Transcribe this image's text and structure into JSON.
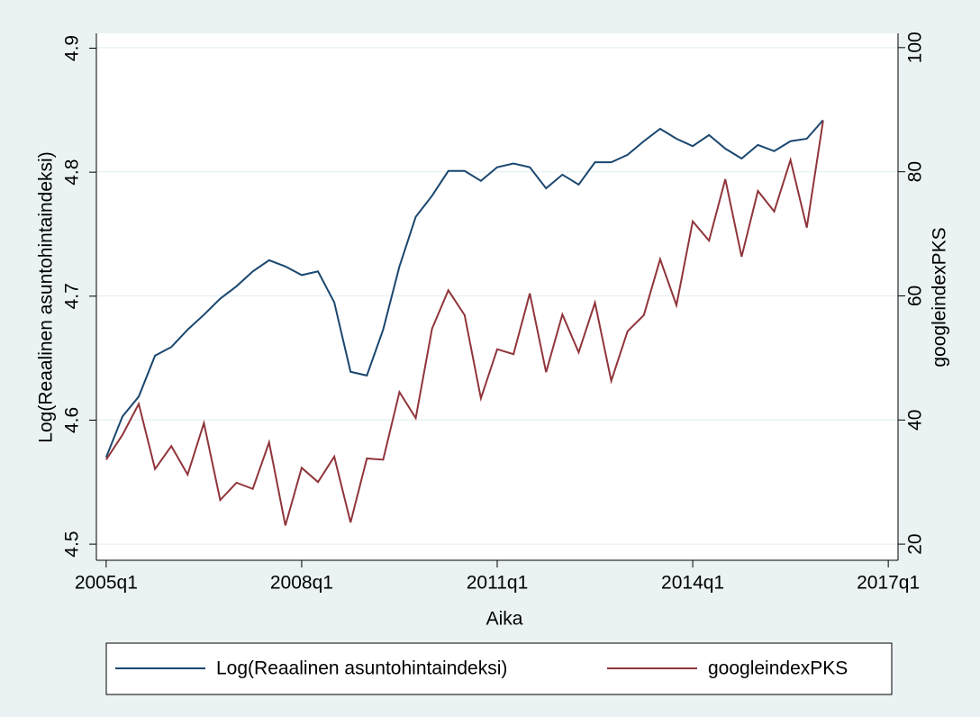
{
  "chart_data": {
    "type": "line",
    "x_label": "Aika",
    "y_label": "Log(Reaalinen asuntohintaindeksi)",
    "y2_label": "googleindexPKS",
    "x": [
      2005,
      2005.25,
      2005.5,
      2005.75,
      2006,
      2006.25,
      2006.5,
      2006.75,
      2007,
      2007.25,
      2007.5,
      2007.75,
      2008,
      2008.25,
      2008.5,
      2008.75,
      2009,
      2009.25,
      2009.5,
      2009.75,
      2010,
      2010.25,
      2010.5,
      2010.75,
      2011,
      2011.25,
      2011.5,
      2011.75,
      2012,
      2012.25,
      2012.5,
      2012.75,
      2013,
      2013.25,
      2013.5,
      2013.75,
      2014,
      2014.25,
      2014.5,
      2014.75,
      2015,
      2015.25,
      2015.5,
      2015.75,
      2016
    ],
    "xlim": [
      2004.85,
      2017.15
    ],
    "xticks": [
      {
        "value": 2005,
        "label": "2005q1"
      },
      {
        "value": 2008,
        "label": "2008q1"
      },
      {
        "value": 2011,
        "label": "2011q1"
      },
      {
        "value": 2014,
        "label": "2014q1"
      },
      {
        "value": 2017,
        "label": "2017q1"
      }
    ],
    "ylim": [
      4.487,
      4.912
    ],
    "yticks": [
      4.5,
      4.6,
      4.7,
      4.8,
      4.9
    ],
    "y2lim": [
      17.4,
      102.3
    ],
    "y2ticks": [
      20,
      40,
      60,
      80,
      100
    ],
    "grid": true,
    "legend": "bottom",
    "series": [
      {
        "name": "Log(Reaalinen asuntohintaindeksi)",
        "color": "#1a476f",
        "axis": "y",
        "values": [
          4.57,
          4.603,
          4.619,
          4.652,
          4.659,
          4.673,
          4.685,
          4.698,
          4.708,
          4.72,
          4.729,
          4.724,
          4.717,
          4.72,
          4.695,
          4.639,
          4.636,
          4.673,
          4.724,
          4.764,
          4.781,
          4.801,
          4.801,
          4.793,
          4.804,
          4.807,
          4.804,
          4.787,
          4.798,
          4.79,
          4.808,
          4.808,
          4.814,
          4.825,
          4.835,
          4.827,
          4.821,
          4.83,
          4.819,
          4.811,
          4.822,
          4.817,
          4.825,
          4.827,
          4.842
        ]
      },
      {
        "name": "googleindexPKS",
        "color": "#90353b",
        "axis": "y2",
        "values": [
          33.6,
          37.6,
          42.6,
          32.1,
          35.8,
          31.2,
          39.5,
          27.1,
          29.9,
          28.9,
          36.4,
          23.0,
          32.3,
          30.0,
          34.1,
          23.5,
          33.8,
          33.6,
          44.5,
          40.3,
          54.7,
          60.9,
          56.9,
          43.5,
          51.4,
          50.6,
          60.4,
          47.7,
          57.0,
          50.9,
          58.9,
          46.3,
          54.3,
          56.9,
          65.9,
          58.5,
          72.0,
          68.9,
          78.8,
          66.3,
          76.9,
          73.6,
          81.9,
          71.0,
          88.2
        ]
      }
    ]
  }
}
